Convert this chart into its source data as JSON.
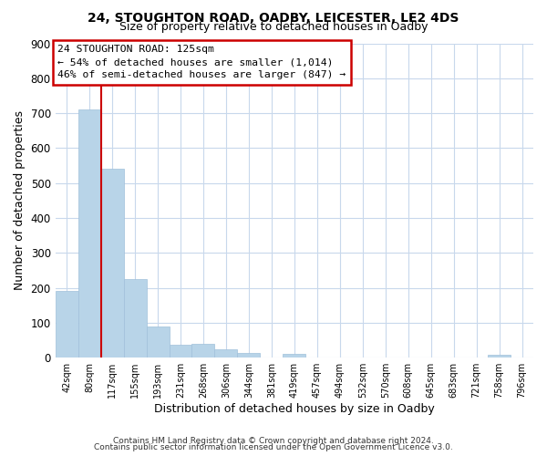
{
  "title1": "24, STOUGHTON ROAD, OADBY, LEICESTER, LE2 4DS",
  "title2": "Size of property relative to detached houses in Oadby",
  "xlabel": "Distribution of detached houses by size in Oadby",
  "ylabel": "Number of detached properties",
  "bin_labels": [
    "42sqm",
    "80sqm",
    "117sqm",
    "155sqm",
    "193sqm",
    "231sqm",
    "268sqm",
    "306sqm",
    "344sqm",
    "381sqm",
    "419sqm",
    "457sqm",
    "494sqm",
    "532sqm",
    "570sqm",
    "608sqm",
    "645sqm",
    "683sqm",
    "721sqm",
    "758sqm",
    "796sqm"
  ],
  "bar_heights": [
    190,
    710,
    540,
    225,
    90,
    38,
    40,
    25,
    13,
    0,
    10,
    0,
    0,
    0,
    0,
    0,
    0,
    0,
    0,
    8,
    0
  ],
  "bar_color": "#b8d4e8",
  "bar_edge_color": "#a0c0da",
  "vline_x_index": 2,
  "vline_color": "#cc0000",
  "ylim": [
    0,
    900
  ],
  "yticks": [
    0,
    100,
    200,
    300,
    400,
    500,
    600,
    700,
    800,
    900
  ],
  "annotation_title": "24 STOUGHTON ROAD: 125sqm",
  "annotation_line1": "← 54% of detached houses are smaller (1,014)",
  "annotation_line2": "46% of semi-detached houses are larger (847) →",
  "footer1": "Contains HM Land Registry data © Crown copyright and database right 2024.",
  "footer2": "Contains public sector information licensed under the Open Government Licence v3.0.",
  "background_color": "#ffffff",
  "grid_color": "#c8d8ec"
}
